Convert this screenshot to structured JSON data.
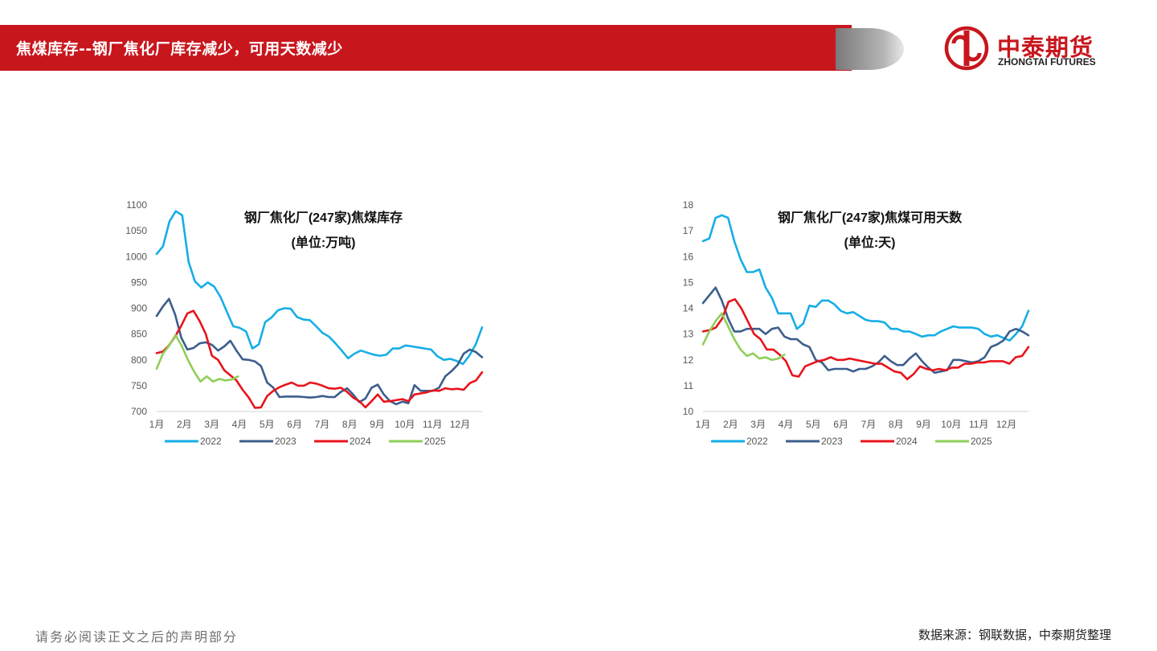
{
  "header": {
    "title": "焦煤库存--钢厂焦化厂库存减少，可用天数减少"
  },
  "logo": {
    "cn": "中泰期货",
    "en": "ZHONGTAI FUTURES"
  },
  "colors": {
    "brand_red": "#c8161d",
    "y2022": "#16aee6",
    "y2023": "#3c5e8c",
    "y2024": "#e8141c",
    "y2025": "#8fcf58"
  },
  "footer": {
    "disclaimer": "请务必阅读正文之后的声明部分",
    "source": "数据来源：钢联数据，中泰期货整理"
  },
  "chart_data": [
    {
      "type": "line",
      "title": "钢厂焦化厂(247家)焦煤库存",
      "subtitle": "(单位:万吨)",
      "xlabel": "",
      "ylabel": "",
      "ylim": [
        700,
        1100
      ],
      "yticks": [
        "700",
        "750",
        "800",
        "850",
        "900",
        "950",
        "1000",
        "1050",
        "1100"
      ],
      "x_ticks": [
        "1月",
        "2月",
        "3月",
        "4月",
        "5月",
        "6月",
        "7月",
        "8月",
        "9月",
        "10月",
        "11月",
        "12月"
      ],
      "x_range": [
        1,
        12.8
      ],
      "grid": false,
      "legend": "bottom",
      "series": [
        {
          "name": "2022",
          "color": "#16aee6",
          "values": [
            1005,
            1020,
            1068,
            1088,
            1080,
            990,
            952,
            940,
            950,
            942,
            922,
            893,
            865,
            862,
            855,
            822,
            830,
            873,
            882,
            896,
            900,
            899,
            883,
            878,
            877,
            865,
            852,
            845,
            832,
            818,
            803,
            812,
            818,
            814,
            810,
            808,
            810,
            822,
            822,
            828,
            826,
            824,
            822,
            820,
            807,
            800,
            802,
            798,
            792,
            808,
            830,
            863
          ]
        },
        {
          "name": "2023",
          "color": "#3c5e8c",
          "values": [
            885,
            903,
            918,
            888,
            843,
            820,
            823,
            832,
            834,
            829,
            818,
            826,
            837,
            818,
            801,
            800,
            797,
            788,
            756,
            746,
            728,
            729,
            729,
            729,
            728,
            727,
            728,
            730,
            728,
            728,
            738,
            745,
            733,
            718,
            725,
            746,
            752,
            733,
            720,
            714,
            719,
            716,
            751,
            740,
            740,
            740,
            746,
            768,
            778,
            790,
            812,
            820,
            815,
            805
          ]
        },
        {
          "name": "2024",
          "color": "#e8141c",
          "values": [
            813,
            816,
            828,
            845,
            866,
            890,
            895,
            875,
            850,
            808,
            800,
            780,
            770,
            760,
            742,
            727,
            707,
            708,
            730,
            740,
            747,
            752,
            756,
            750,
            750,
            756,
            754,
            750,
            745,
            744,
            746,
            738,
            727,
            720,
            708,
            720,
            733,
            719,
            720,
            722,
            724,
            720,
            733,
            735,
            737,
            741,
            740,
            745,
            743,
            744,
            742,
            755,
            760,
            776
          ]
        },
        {
          "name": "2025",
          "color": "#8fcf58",
          "values": [
            783,
            812,
            828,
            848,
            827,
            800,
            777,
            758,
            768,
            758,
            763,
            760,
            762,
            768
          ]
        }
      ]
    },
    {
      "type": "line",
      "title": "钢厂焦化厂(247家)焦煤可用天数",
      "subtitle": "(单位:天)",
      "xlabel": "",
      "ylabel": "",
      "ylim": [
        10,
        18
      ],
      "yticks": [
        "10",
        "11",
        "12",
        "13",
        "14",
        "15",
        "16",
        "17",
        "18"
      ],
      "x_ticks": [
        "1月",
        "2月",
        "3月",
        "4月",
        "5月",
        "6月",
        "7月",
        "8月",
        "9月",
        "10月",
        "11月",
        "12月"
      ],
      "x_range": [
        1,
        12.8
      ],
      "grid": false,
      "legend": "bottom",
      "series": [
        {
          "name": "2022",
          "color": "#16aee6",
          "values": [
            16.6,
            16.7,
            17.5,
            17.6,
            17.5,
            16.6,
            15.9,
            15.4,
            15.4,
            15.5,
            14.8,
            14.4,
            13.8,
            13.8,
            13.8,
            13.2,
            13.4,
            14.1,
            14.05,
            14.3,
            14.3,
            14.15,
            13.9,
            13.8,
            13.85,
            13.7,
            13.55,
            13.5,
            13.5,
            13.45,
            13.2,
            13.2,
            13.1,
            13.1,
            13.0,
            12.9,
            12.95,
            12.95,
            13.1,
            13.2,
            13.3,
            13.25,
            13.25,
            13.25,
            13.2,
            13.0,
            12.9,
            12.95,
            12.85,
            12.75,
            13.0,
            13.3,
            13.9
          ]
        },
        {
          "name": "2023",
          "color": "#3c5e8c",
          "values": [
            14.2,
            14.5,
            14.8,
            14.3,
            13.6,
            13.1,
            13.1,
            13.2,
            13.2,
            13.2,
            13.0,
            13.2,
            13.25,
            12.9,
            12.8,
            12.8,
            12.6,
            12.5,
            12.0,
            11.9,
            11.6,
            11.65,
            11.65,
            11.65,
            11.55,
            11.65,
            11.65,
            11.75,
            11.9,
            12.15,
            11.95,
            11.8,
            11.8,
            12.05,
            12.25,
            11.95,
            11.7,
            11.5,
            11.55,
            11.6,
            12.0,
            12.0,
            11.95,
            11.9,
            11.95,
            12.1,
            12.5,
            12.6,
            12.75,
            13.1,
            13.2,
            13.1,
            12.95
          ]
        },
        {
          "name": "2024",
          "color": "#e8141c",
          "values": [
            13.1,
            13.15,
            13.25,
            13.6,
            14.25,
            14.35,
            14.0,
            13.5,
            13.0,
            12.8,
            12.4,
            12.4,
            12.2,
            11.95,
            11.4,
            11.35,
            11.75,
            11.85,
            11.95,
            12.0,
            12.1,
            12.0,
            12.0,
            12.05,
            12.0,
            11.95,
            11.9,
            11.85,
            11.85,
            11.7,
            11.55,
            11.5,
            11.25,
            11.45,
            11.75,
            11.65,
            11.6,
            11.65,
            11.6,
            11.7,
            11.7,
            11.85,
            11.85,
            11.9,
            11.9,
            11.95,
            11.95,
            11.95,
            11.85,
            12.1,
            12.15,
            12.5
          ]
        },
        {
          "name": "2025",
          "color": "#8fcf58",
          "values": [
            12.6,
            13.1,
            13.5,
            13.8,
            13.3,
            12.8,
            12.4,
            12.15,
            12.25,
            12.05,
            12.1,
            12.0,
            12.05,
            12.2
          ]
        }
      ]
    }
  ]
}
